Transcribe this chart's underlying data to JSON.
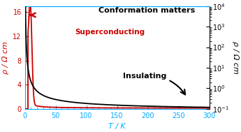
{
  "title": "Conformation matters",
  "superconducting_label": "Superconducting",
  "insulating_label": "Insulating",
  "xlabel": "T / K",
  "ylabel_left": "ρ / Ω cm",
  "ylabel_right": "ρ / Ω cm",
  "xlim": [
    0,
    300
  ],
  "ylim_left": [
    0,
    17
  ],
  "yticks_left": [
    0,
    4,
    8,
    12,
    16
  ],
  "xticks": [
    0,
    50,
    100,
    150,
    200,
    250,
    300
  ],
  "axis_color": "#00aaff",
  "left_label_color": "#cc0000",
  "bg_color": "white",
  "red_line_color": "#cc0000",
  "black_line_color": "black",
  "peak_T": 9,
  "peak_rho": 16.0,
  "Tc": 5.0,
  "figsize": [
    3.45,
    1.89
  ],
  "dpi": 100
}
